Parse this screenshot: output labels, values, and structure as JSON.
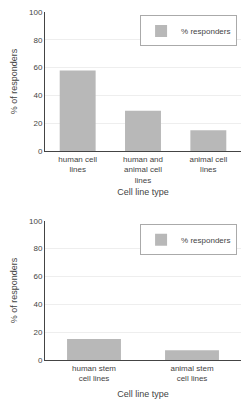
{
  "chart_data": [
    {
      "type": "bar",
      "categories": [
        "human cell lines",
        "human and animal cell lines",
        "animal cell lines"
      ],
      "series": [
        {
          "name": "% responders",
          "color": "#b8b8b8",
          "values": [
            58,
            29,
            15
          ]
        }
      ],
      "xlabel": "Cell line type",
      "ylabel": "% of responders",
      "ylim": [
        0,
        100
      ],
      "yticks": [
        0,
        20,
        40,
        60,
        80,
        100
      ],
      "grid": true,
      "legend": "upper right"
    },
    {
      "type": "bar",
      "categories": [
        "human stem cell lines",
        "animal stem cell lines"
      ],
      "series": [
        {
          "name": "% responders",
          "color": "#b8b8b8",
          "values": [
            15,
            7
          ]
        }
      ],
      "xlabel": "Cell line type",
      "ylabel": "% of responders",
      "ylim": [
        0,
        100
      ],
      "yticks": [
        0,
        20,
        40,
        60,
        80,
        100
      ],
      "grid": true,
      "legend": "upper right"
    }
  ]
}
